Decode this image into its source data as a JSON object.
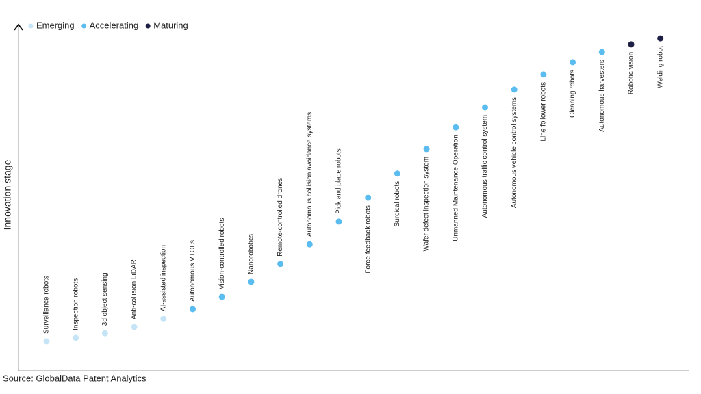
{
  "chart_data": {
    "type": "scatter",
    "y_label": "Innovation stage",
    "source": "Source: GlobalData Patent Analytics",
    "ylim": [
      0,
      100
    ],
    "categories": [
      "Surveillance robots",
      "Inspection robots",
      "3d object sensing",
      "Anti-collision LiDAR",
      "AI-assisted inspection",
      "Autonomous VTOLs",
      "Vision-controlled robots",
      "Nanorobotics",
      "Remote-controlled drones",
      "Autonomous collision avoidance systems",
      "Pick and place robots",
      "Force feedback robots",
      "Surgical robots",
      "Wafer defect inspection system",
      "Unmanned Maintenance Operation",
      "Autonomous traffic control system",
      "Autonomous vehicle control systems",
      "Line follower robots",
      "Cleaning robots",
      "Autonomous harvesters",
      "Robotic vision",
      "Welding robot"
    ],
    "series": [
      {
        "name": "Emerging",
        "color": "#c5e5f7",
        "values": [
          8.4,
          9.4,
          10.7,
          12.5,
          14.8,
          null,
          null,
          null,
          null,
          null,
          null,
          null,
          null,
          null,
          null,
          null,
          null,
          null,
          null,
          null,
          null,
          null
        ]
      },
      {
        "name": "Accelerating",
        "color": "#5bbcf0",
        "values": [
          null,
          null,
          null,
          null,
          null,
          17.6,
          21.1,
          25.4,
          30.5,
          36.1,
          42.6,
          49.4,
          56.3,
          63.3,
          69.5,
          75.2,
          80.3,
          84.6,
          88.1,
          91.0,
          null,
          null
        ]
      },
      {
        "name": "Maturing",
        "color": "#1e1f45",
        "values": [
          null,
          null,
          null,
          null,
          null,
          null,
          null,
          null,
          null,
          null,
          null,
          null,
          null,
          null,
          null,
          null,
          null,
          null,
          null,
          null,
          93.2,
          94.9
        ]
      }
    ]
  }
}
